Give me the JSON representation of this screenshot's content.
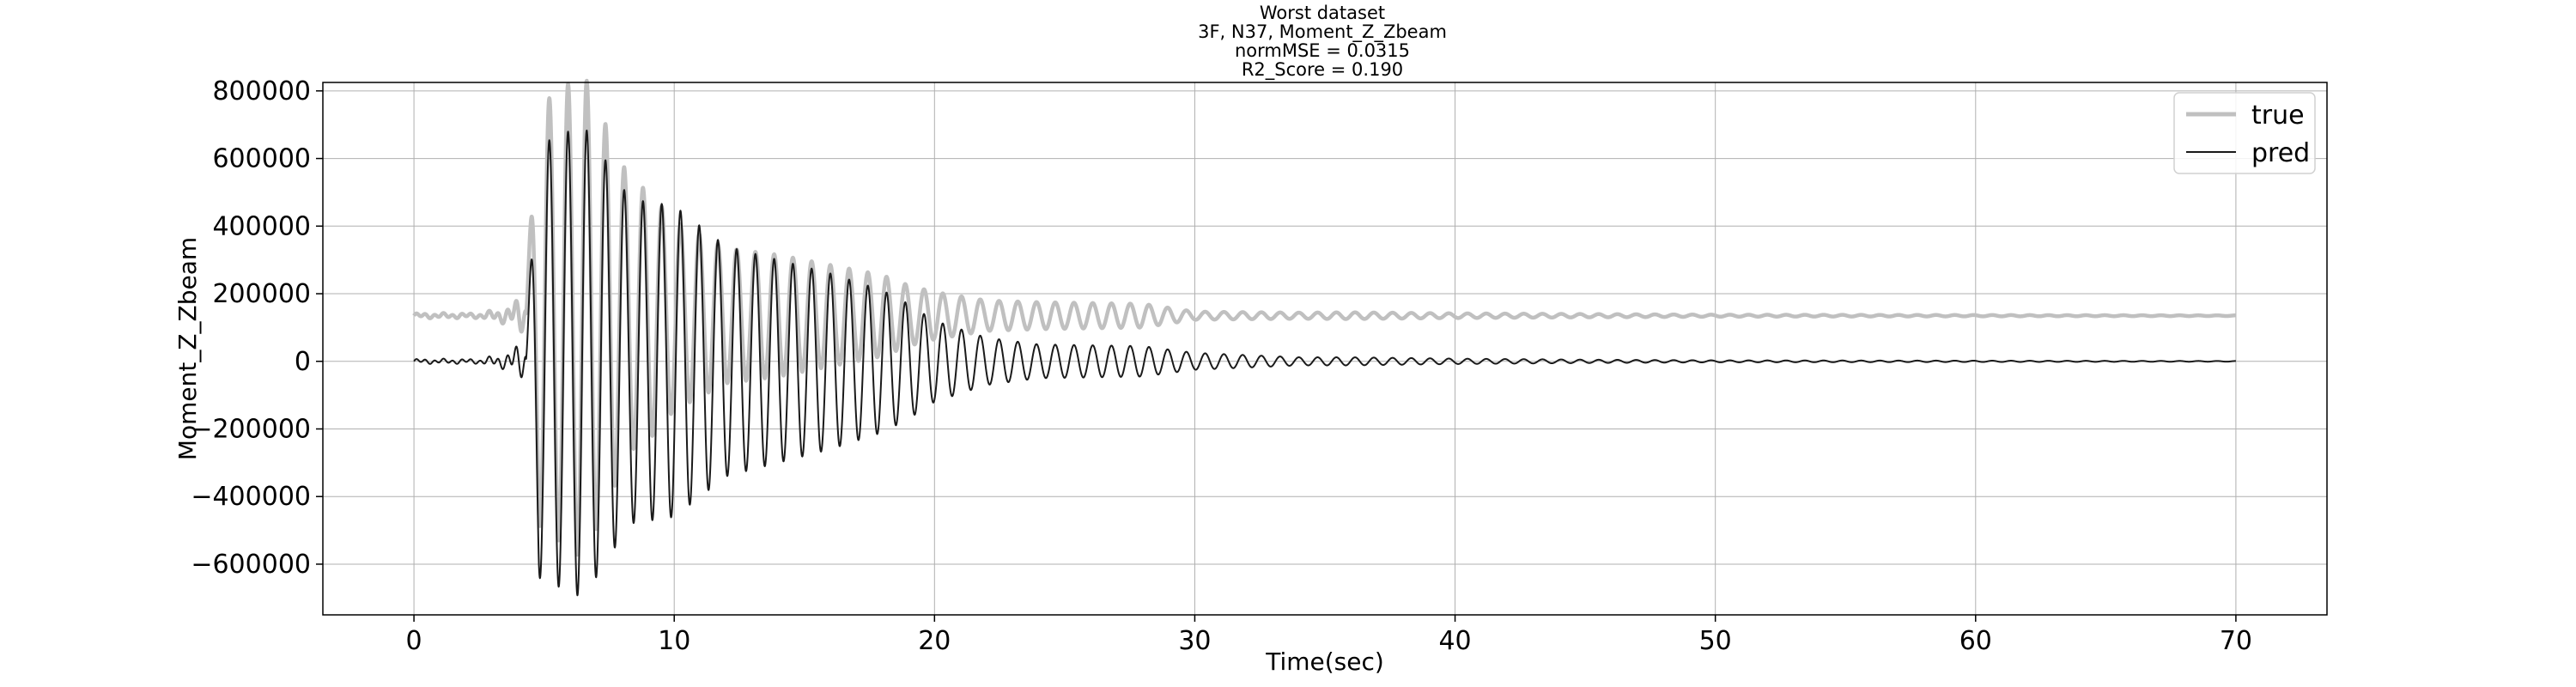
{
  "chart_data": {
    "type": "line",
    "title": [
      "Worst dataset",
      "3F, N37, Moment_Z_Zbeam",
      "normMSE = 0.0315",
      "R2_Score = 0.190"
    ],
    "xlabel": "Time(sec)",
    "ylabel": "Moment_Z_Zbeam",
    "xlim": [
      -3.5,
      73.5
    ],
    "ylim": [
      -750000,
      825000
    ],
    "xticks": [
      0,
      10,
      20,
      30,
      40,
      50,
      60,
      70
    ],
    "xtick_labels": [
      "0",
      "10",
      "20",
      "30",
      "40",
      "50",
      "60",
      "70"
    ],
    "yticks": [
      -600000,
      -400000,
      -200000,
      0,
      200000,
      400000,
      600000,
      800000
    ],
    "ytick_labels": [
      "−600000",
      "−400000",
      "−200000",
      "0",
      "200000",
      "400000",
      "600000",
      "800000"
    ],
    "grid": true,
    "legend_position": "top-right",
    "series": [
      {
        "name": "true",
        "color": "#c0c0c0",
        "style": "thick",
        "offset": 135000,
        "envelope": [
          [
            0,
            8000
          ],
          [
            2.5,
            8000
          ],
          [
            3.5,
            25000
          ],
          [
            4.3,
            70000
          ],
          [
            4.8,
            620000
          ],
          [
            6.5,
            720000
          ],
          [
            8.3,
            400000
          ],
          [
            9.0,
            370000
          ],
          [
            10,
            280000
          ],
          [
            11,
            240000
          ],
          [
            12,
            200000
          ],
          [
            14,
            180000
          ],
          [
            16,
            150000
          ],
          [
            18,
            120000
          ],
          [
            19,
            90000
          ],
          [
            20,
            70000
          ],
          [
            22,
            45000
          ],
          [
            24,
            40000
          ],
          [
            28,
            35000
          ],
          [
            30,
            12000
          ],
          [
            34,
            9000
          ],
          [
            36,
            10000
          ],
          [
            40,
            7000
          ],
          [
            45,
            5000
          ],
          [
            50,
            3000
          ],
          [
            60,
            2000
          ],
          [
            70,
            1000
          ]
        ]
      },
      {
        "name": "pred",
        "color": "#1a1a1a",
        "style": "thin",
        "offset": 0,
        "envelope": [
          [
            0,
            8000
          ],
          [
            2.5,
            8000
          ],
          [
            3.5,
            25000
          ],
          [
            4.3,
            70000
          ],
          [
            4.8,
            640000
          ],
          [
            6.5,
            700000
          ],
          [
            8.3,
            480000
          ],
          [
            10,
            460000
          ],
          [
            11,
            400000
          ],
          [
            12,
            340000
          ],
          [
            14,
            300000
          ],
          [
            16,
            260000
          ],
          [
            18,
            210000
          ],
          [
            19,
            170000
          ],
          [
            20,
            120000
          ],
          [
            22,
            70000
          ],
          [
            24,
            50000
          ],
          [
            28,
            45000
          ],
          [
            30,
            25000
          ],
          [
            34,
            12000
          ],
          [
            36,
            12000
          ],
          [
            40,
            8000
          ],
          [
            45,
            5000
          ],
          [
            50,
            3000
          ],
          [
            60,
            2000
          ],
          [
            70,
            1000
          ]
        ]
      }
    ],
    "signal": {
      "t_start": 0,
      "t_end": 70,
      "osc_start": 4.3,
      "period": 0.72
    }
  }
}
